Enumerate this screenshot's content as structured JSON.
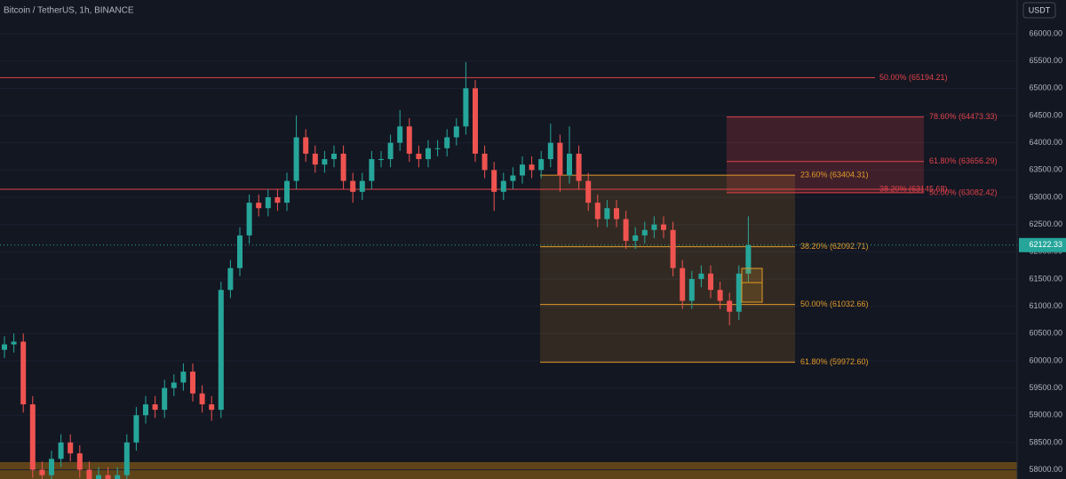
{
  "chart_data": {
    "type": "candlestick",
    "title": "Bitcoin / TetherUS, 1h, BINANCE",
    "currency": "USDT",
    "ylim": [
      57830,
      66620
    ],
    "yticks": [
      {
        "value": 58000,
        "label": "58000.00"
      },
      {
        "value": 58500,
        "label": "58500.00"
      },
      {
        "value": 59000,
        "label": "59000.00"
      },
      {
        "value": 59500,
        "label": "59500.00"
      },
      {
        "value": 60000,
        "label": "60000.00"
      },
      {
        "value": 60500,
        "label": "60500.00"
      },
      {
        "value": 61000,
        "label": "61000.00"
      },
      {
        "value": 61500,
        "label": "61500.00"
      },
      {
        "value": 62000,
        "label": "62000.00"
      },
      {
        "value": 62500,
        "label": "62500.00"
      },
      {
        "value": 63000,
        "label": "63000.00"
      },
      {
        "value": 63500,
        "label": "63500.00"
      },
      {
        "value": 64000,
        "label": "64000.00"
      },
      {
        "value": 64500,
        "label": "64500.00"
      },
      {
        "value": 65000,
        "label": "65000.00"
      },
      {
        "value": 65500,
        "label": "65500.00"
      },
      {
        "value": 66000,
        "label": "66000.00"
      }
    ],
    "grid": true,
    "up_color": "#26a69a",
    "down_color": "#ef5350",
    "open": [
      60200,
      60300,
      60350,
      59200,
      58000,
      57900,
      58200,
      58500,
      58300,
      58000,
      57800,
      57900,
      57800,
      57900,
      58500,
      59000,
      59200,
      59100,
      59500,
      59600,
      59800,
      59400,
      59200,
      59100,
      61300,
      61700,
      62300,
      62900,
      62800,
      63000,
      62900,
      63300,
      64100,
      63800,
      63600,
      63700,
      63800,
      63300,
      63100,
      63300,
      63700,
      63700,
      64000,
      64300,
      63800,
      63700,
      63900,
      63900,
      64100,
      64300,
      65000,
      63800,
      63500,
      63100,
      63300,
      63400,
      63600,
      63500,
      63700,
      64000,
      63400,
      63800,
      63300,
      62900,
      62600,
      62800,
      62600,
      62200,
      62300,
      62400,
      62500,
      62400,
      61700,
      61100,
      61500,
      61600,
      61300,
      61100,
      60900,
      61600
    ],
    "high": [
      60450,
      60500,
      60500,
      59350,
      58150,
      58350,
      58650,
      58650,
      58450,
      58150,
      58050,
      58050,
      58050,
      58650,
      59150,
      59350,
      59350,
      59650,
      59750,
      59950,
      59950,
      59550,
      59350,
      61450,
      61850,
      62450,
      63050,
      63050,
      63150,
      63150,
      63450,
      64500,
      64250,
      63950,
      63850,
      63950,
      63950,
      63450,
      63450,
      63850,
      63850,
      64150,
      64600,
      64450,
      63950,
      64050,
      64050,
      64250,
      64450,
      65480,
      65150,
      63950,
      63650,
      63450,
      63550,
      63750,
      63750,
      63850,
      64350,
      64150,
      64300,
      63950,
      63450,
      63050,
      62950,
      62950,
      62750,
      62450,
      62550,
      62650,
      62650,
      62550,
      61850,
      61650,
      61750,
      61750,
      61450,
      61250,
      61750,
      62650
    ],
    "low": [
      60050,
      60150,
      59050,
      57850,
      57750,
      57750,
      58050,
      58150,
      57850,
      57650,
      57650,
      57650,
      57650,
      57750,
      58350,
      58850,
      58950,
      58950,
      59350,
      59450,
      59250,
      59050,
      58900,
      58950,
      61150,
      61550,
      62150,
      62650,
      62650,
      62750,
      62750,
      63150,
      63650,
      63450,
      63450,
      63550,
      63150,
      62900,
      62950,
      63150,
      63550,
      63550,
      63850,
      63650,
      63550,
      63550,
      63750,
      63750,
      63950,
      64150,
      63650,
      63350,
      62750,
      62950,
      63150,
      63250,
      63350,
      63350,
      63550,
      63100,
      63250,
      63150,
      62750,
      62450,
      62450,
      62450,
      62050,
      62050,
      62150,
      62250,
      62250,
      61550,
      60950,
      60950,
      61350,
      61150,
      60950,
      60650,
      60750,
      61450
    ],
    "close": [
      60300,
      60350,
      59200,
      58000,
      57900,
      58200,
      58500,
      58300,
      58000,
      57800,
      57900,
      57800,
      57900,
      58500,
      59000,
      59200,
      59100,
      59500,
      59600,
      59800,
      59400,
      59200,
      59100,
      61300,
      61700,
      62300,
      62900,
      62800,
      63000,
      62900,
      63300,
      64100,
      63800,
      63600,
      63700,
      63800,
      63300,
      63100,
      63300,
      63700,
      63700,
      64000,
      64300,
      63800,
      63700,
      63900,
      63900,
      64100,
      64300,
      65000,
      63800,
      63500,
      63100,
      63300,
      63400,
      63600,
      63500,
      63700,
      64000,
      63400,
      63800,
      63300,
      62900,
      62600,
      62800,
      62600,
      62200,
      62300,
      62400,
      62500,
      62400,
      61700,
      61100,
      61500,
      61600,
      61300,
      61100,
      60900,
      61600,
      62122.33
    ],
    "last_price": 62122.33,
    "last_price_color": "#26a69a",
    "fib_levels": [
      {
        "value": 65194.21,
        "label": "50.00% (65194.21)",
        "color": "#e0424a"
      },
      {
        "value": 64473.33,
        "label": "78.60% (64473.33)",
        "color": "#e0424a"
      },
      {
        "value": 63656.29,
        "label": "61.80% (63656.29)",
        "color": "#e0424a"
      },
      {
        "value": 63404.31,
        "label": "23.60% (63404.31)",
        "color": "#e39b2a"
      },
      {
        "value": 63145.68,
        "label": "38.20% (63145.68)",
        "color": "#e0424a"
      },
      {
        "value": 63082.42,
        "label": "50.00% (63082.42)",
        "color": "#e0424a"
      },
      {
        "value": 62092.71,
        "label": "38.20% (62092.71)",
        "color": "#e39b2a"
      },
      {
        "value": 61032.66,
        "label": "50.00% (61032.66)",
        "color": "#e39b2a"
      },
      {
        "value": 59972.6,
        "label": "61.80% (59972.60)",
        "color": "#e39b2a"
      }
    ]
  }
}
